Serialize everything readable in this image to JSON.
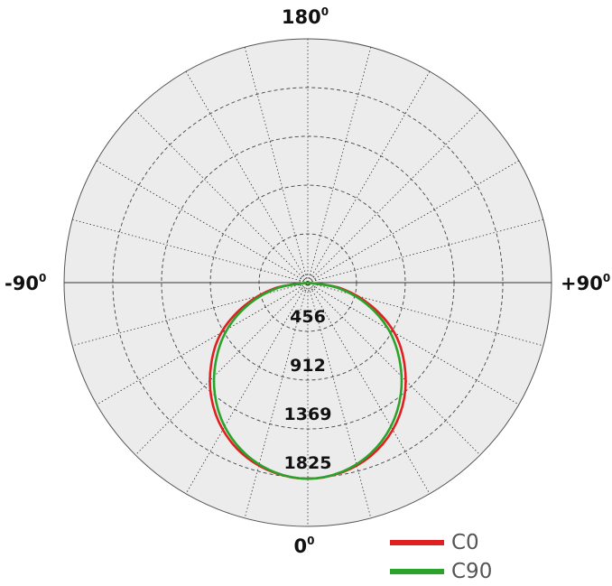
{
  "chart_data": {
    "type": "polar",
    "title": "",
    "angle_labels": {
      "top": {
        "value": "180",
        "sup": "0"
      },
      "left": {
        "value": "-90",
        "sup": "0"
      },
      "right": {
        "value": "+90",
        "sup": "0"
      },
      "bottom": {
        "value": "0",
        "sup": "0"
      }
    },
    "radial_tick_labels": [
      "456",
      "912",
      "1369",
      "1825"
    ],
    "radial_ticks": [
      456,
      912,
      1369,
      1825
    ],
    "radial_max": 2281,
    "angular_grid_step_deg": 15,
    "background_color": "#ececec",
    "legend_placement": "bottom-right",
    "series": [
      {
        "name": "C0",
        "color": "#e02020",
        "angles": [
          -90,
          -80,
          -70,
          -60,
          -50,
          -40,
          -30,
          -20,
          -10,
          0,
          10,
          20,
          30,
          40,
          50,
          60,
          70,
          80,
          90
        ],
        "values": [
          0,
          320,
          630,
          935,
          1180,
          1405,
          1590,
          1725,
          1805,
          1835,
          1805,
          1725,
          1590,
          1405,
          1180,
          935,
          630,
          320,
          0
        ]
      },
      {
        "name": "C90",
        "color": "#2aa32a",
        "angles": [
          -90,
          -80,
          -70,
          -60,
          -50,
          -40,
          -30,
          -20,
          -10,
          0,
          10,
          20,
          30,
          40,
          50,
          60,
          70,
          80,
          90
        ],
        "values": [
          0,
          285,
          585,
          870,
          1120,
          1355,
          1555,
          1705,
          1800,
          1835,
          1800,
          1705,
          1555,
          1355,
          1120,
          870,
          585,
          285,
          0
        ]
      }
    ]
  }
}
